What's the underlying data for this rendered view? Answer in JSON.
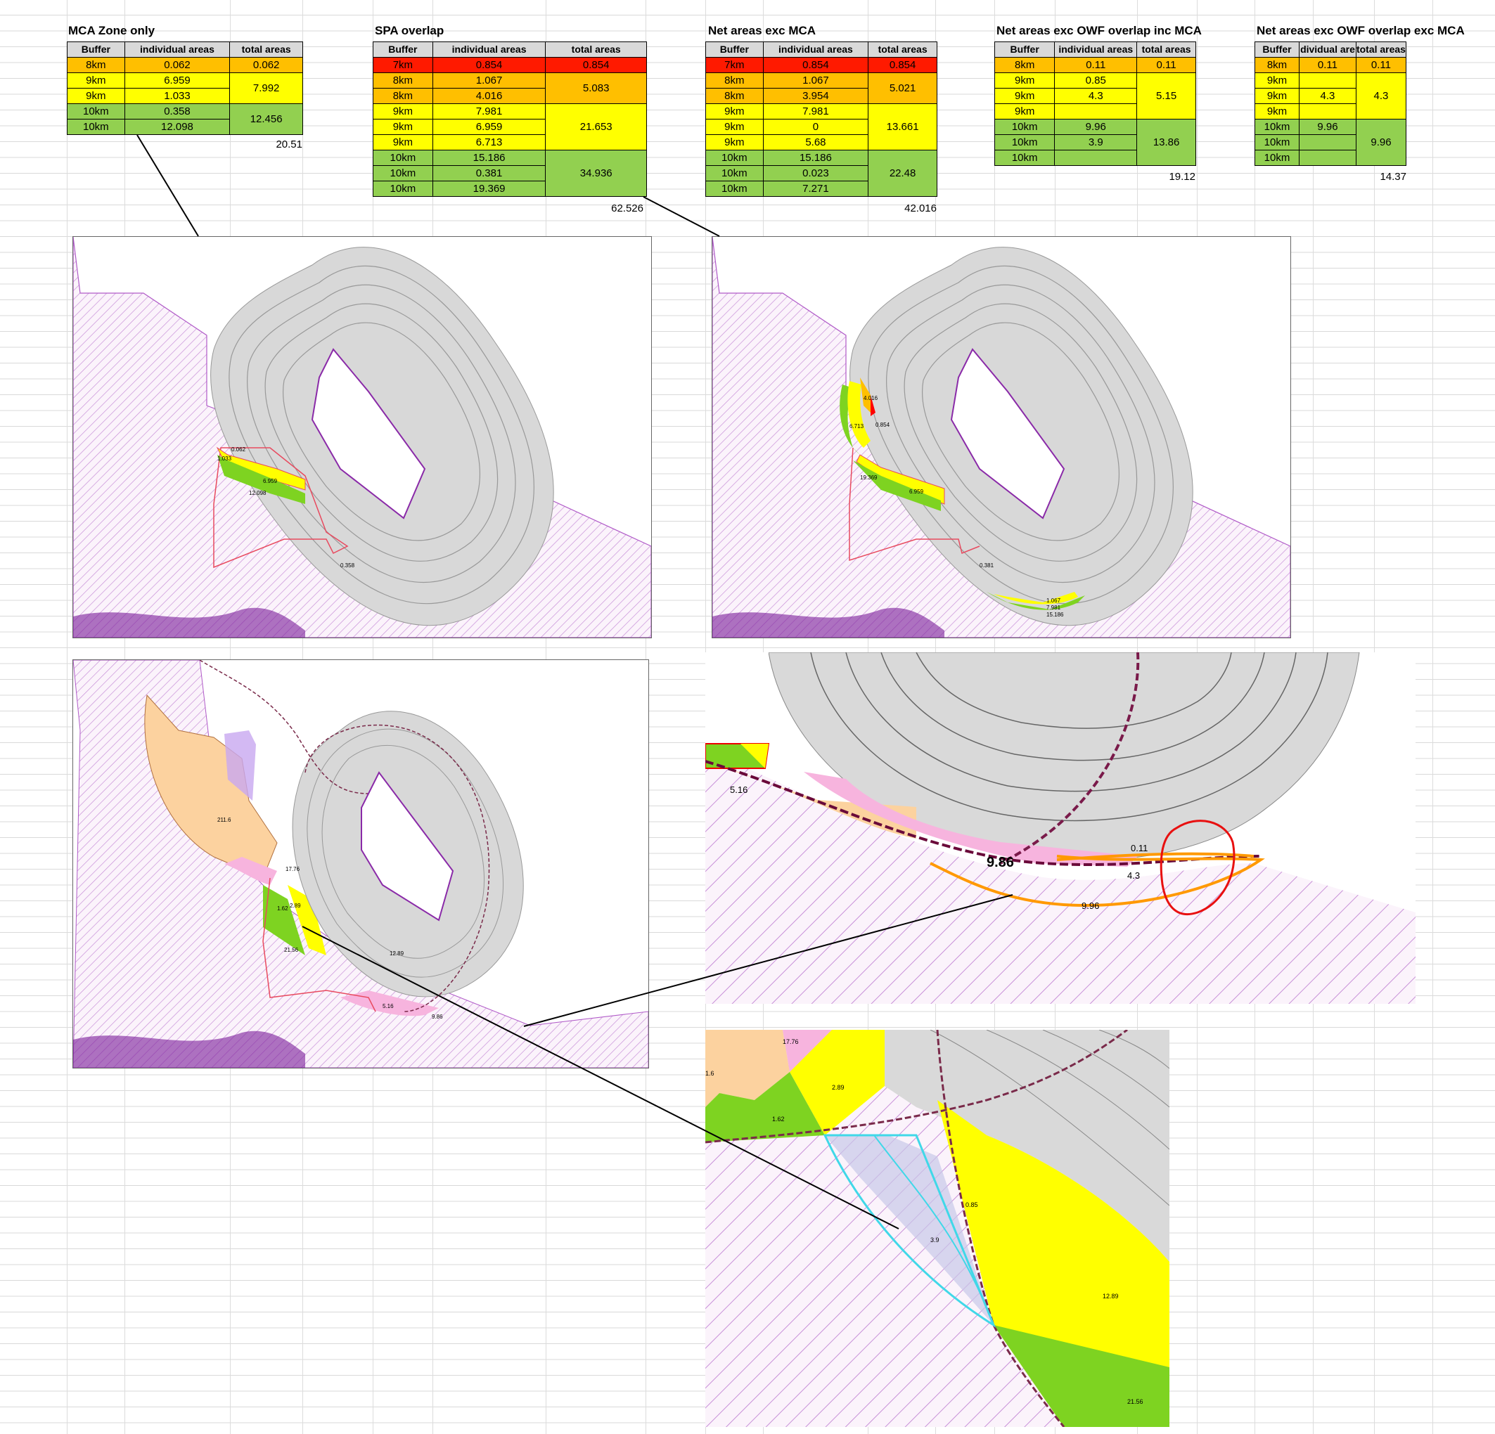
{
  "tables": {
    "mca": {
      "title": "MCA Zone only",
      "headers": [
        "Buffer",
        "individual areas",
        "total areas"
      ],
      "rows": [
        {
          "buffer": "8km",
          "area": "0.062"
        },
        {
          "buffer": "9km",
          "area": "6.959"
        },
        {
          "buffer": "9km",
          "area": "1.033"
        },
        {
          "buffer": "10km",
          "area": "0.358"
        },
        {
          "buffer": "10km",
          "area": "12.098"
        }
      ],
      "totals": [
        "0.062",
        "7.992",
        "12.456"
      ],
      "grand_total": "20.51"
    },
    "spa": {
      "title": "SPA overlap",
      "headers": [
        "Buffer",
        "individual areas",
        "total areas"
      ],
      "rows": [
        {
          "buffer": "7km",
          "area": "0.854"
        },
        {
          "buffer": "8km",
          "area": "1.067"
        },
        {
          "buffer": "8km",
          "area": "4.016"
        },
        {
          "buffer": "9km",
          "area": "7.981"
        },
        {
          "buffer": "9km",
          "area": "6.959"
        },
        {
          "buffer": "9km",
          "area": "6.713"
        },
        {
          "buffer": "10km",
          "area": "15.186"
        },
        {
          "buffer": "10km",
          "area": "0.381"
        },
        {
          "buffer": "10km",
          "area": "19.369"
        }
      ],
      "totals": [
        "0.854",
        "5.083",
        "21.653",
        "34.936"
      ],
      "grand_total": "62.526"
    },
    "net_mca": {
      "title": "Net areas exc MCA",
      "headers": [
        "Buffer",
        "individual areas",
        "total areas"
      ],
      "rows": [
        {
          "buffer": "7km",
          "area": "0.854"
        },
        {
          "buffer": "8km",
          "area": "1.067"
        },
        {
          "buffer": "8km",
          "area": "3.954"
        },
        {
          "buffer": "9km",
          "area": "7.981"
        },
        {
          "buffer": "9km",
          "area": "0"
        },
        {
          "buffer": "9km",
          "area": "5.68"
        },
        {
          "buffer": "10km",
          "area": "15.186"
        },
        {
          "buffer": "10km",
          "area": "0.023"
        },
        {
          "buffer": "10km",
          "area": "7.271"
        }
      ],
      "totals": [
        "0.854",
        "5.021",
        "13.661",
        "22.48"
      ],
      "grand_total": "42.016"
    },
    "owf_inc": {
      "title": "Net areas exc OWF overlap inc MCA",
      "headers": [
        "Buffer",
        "individual areas",
        "total areas"
      ],
      "rows": [
        {
          "buffer": "8km",
          "area": "0.11"
        },
        {
          "buffer": "9km",
          "area": "0.85"
        },
        {
          "buffer": "9km",
          "area": "4.3"
        },
        {
          "buffer": "9km",
          "area": ""
        },
        {
          "buffer": "10km",
          "area": "9.96"
        },
        {
          "buffer": "10km",
          "area": "3.9"
        },
        {
          "buffer": "10km",
          "area": ""
        }
      ],
      "totals": [
        "0.11",
        "5.15",
        "13.86"
      ],
      "grand_total": "19.12"
    },
    "owf_exc": {
      "title": "Net areas exc OWF overlap exc MCA",
      "headers": [
        "Buffer",
        "dividual are",
        "total areas"
      ],
      "rows": [
        {
          "buffer": "8km",
          "area": "0.11"
        },
        {
          "buffer": "9km",
          "area": ""
        },
        {
          "buffer": "9km",
          "area": "4.3"
        },
        {
          "buffer": "9km",
          "area": ""
        },
        {
          "buffer": "10km",
          "area": "9.96"
        },
        {
          "buffer": "10km",
          "area": ""
        },
        {
          "buffer": "10km",
          "area": ""
        }
      ],
      "totals": [
        "0.11",
        "4.3",
        "9.96"
      ],
      "grand_total": "14.37"
    }
  },
  "maps": {
    "map1_labels": [
      "0.062",
      "1.033",
      "6.959",
      "12.098",
      "0.358"
    ],
    "map2_labels": [
      "4.016",
      "0.854",
      "6.713",
      "19.369",
      "6.959",
      "0.381",
      "1.067",
      "7.981",
      "15.186"
    ],
    "map3_labels": [
      "211.6",
      "17.76",
      "2.89",
      "1.62",
      "21.56",
      "12.89",
      "5.16",
      "9.86"
    ],
    "zoom1_labels": [
      "5.16",
      "9.86",
      "0.11",
      "4.3",
      "9.96"
    ],
    "zoom2_labels": [
      "17.76",
      "1.6",
      "2.89",
      "1.62",
      "0.85",
      "3.9",
      "12.89",
      "21.56"
    ]
  }
}
